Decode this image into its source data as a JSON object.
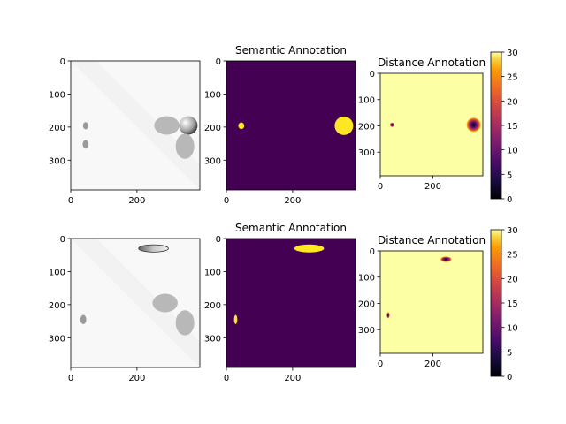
{
  "chart_data": [
    {
      "type": "heatmap",
      "panel": "rgb-image",
      "title": "",
      "image_size": [
        390,
        390
      ],
      "xticks": [
        0,
        200
      ],
      "yticks": [
        0,
        100,
        200,
        300
      ],
      "objects": [
        {
          "kind": "sphere",
          "cx": 355,
          "cy": 195,
          "r": 28
        },
        {
          "kind": "ellipse",
          "cx": 290,
          "cy": 195,
          "rx": 38,
          "ry": 28
        },
        {
          "kind": "ellipse",
          "cx": 345,
          "cy": 258,
          "rx": 28,
          "ry": 38
        },
        {
          "kind": "small",
          "cx": 45,
          "cy": 196,
          "rx": 8,
          "ry": 11
        },
        {
          "kind": "small",
          "cx": 45,
          "cy": 252,
          "rx": 9,
          "ry": 13
        }
      ]
    },
    {
      "type": "heatmap",
      "panel": "semantic",
      "title": "Semantic Annotation",
      "image_size": [
        390,
        390
      ],
      "xticks": [
        0,
        200
      ],
      "yticks": [
        0,
        100,
        200,
        300
      ],
      "background_color": "#440154",
      "foreground_color": "#fde725",
      "objects": [
        {
          "cx": 355,
          "cy": 196,
          "rx": 28,
          "ry": 28
        },
        {
          "cx": 45,
          "cy": 196,
          "rx": 9,
          "ry": 10
        }
      ]
    },
    {
      "type": "heatmap",
      "panel": "distance",
      "title": "Distance Annotation",
      "image_size": [
        390,
        390
      ],
      "xticks": [
        0,
        200
      ],
      "yticks": [
        0,
        100,
        200,
        300
      ],
      "colormap": "inferno",
      "clim": [
        0,
        30
      ],
      "colorbar_ticks": [
        0,
        5,
        10,
        15,
        20,
        25,
        30
      ],
      "objects": [
        {
          "cx": 355,
          "cy": 196,
          "r": 28
        },
        {
          "cx": 45,
          "cy": 196,
          "r": 9
        }
      ]
    },
    {
      "type": "heatmap",
      "panel": "rgb-image",
      "title": "",
      "image_size": [
        390,
        390
      ],
      "xticks": [
        0,
        200
      ],
      "yticks": [
        0,
        100,
        200,
        300
      ],
      "objects": [
        {
          "kind": "ellipse-top",
          "cx": 250,
          "cy": 30,
          "rx": 45,
          "ry": 11
        },
        {
          "kind": "ellipse",
          "cx": 285,
          "cy": 195,
          "rx": 38,
          "ry": 28
        },
        {
          "kind": "ellipse",
          "cx": 345,
          "cy": 255,
          "rx": 28,
          "ry": 38
        },
        {
          "kind": "small",
          "cx": 38,
          "cy": 245,
          "rx": 9,
          "ry": 14
        }
      ]
    },
    {
      "type": "heatmap",
      "panel": "semantic",
      "title": "Semantic Annotation",
      "image_size": [
        390,
        390
      ],
      "xticks": [
        0,
        200
      ],
      "yticks": [
        0,
        100,
        200,
        300
      ],
      "background_color": "#440154",
      "foreground_color": "#fde725",
      "objects": [
        {
          "cx": 250,
          "cy": 30,
          "rx": 45,
          "ry": 12
        },
        {
          "cx": 28,
          "cy": 245,
          "rx": 5,
          "ry": 14
        }
      ]
    },
    {
      "type": "heatmap",
      "panel": "distance",
      "title": "Distance Annotation",
      "image_size": [
        390,
        390
      ],
      "xticks": [
        0,
        200
      ],
      "yticks": [
        0,
        100,
        200,
        300
      ],
      "colormap": "inferno",
      "clim": [
        0,
        30
      ],
      "colorbar_ticks": [
        0,
        5,
        10,
        15,
        20,
        25,
        30
      ],
      "objects": [
        {
          "cx": 250,
          "cy": 32,
          "r": 22,
          "ry": 11
        },
        {
          "cx": 30,
          "cy": 245,
          "r": 6,
          "ry": 12
        }
      ]
    }
  ]
}
